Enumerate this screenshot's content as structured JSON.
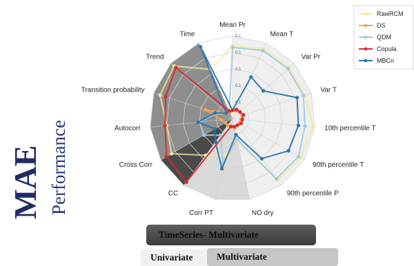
{
  "side": {
    "title": "MAE",
    "subtitle": "Performance"
  },
  "bars": {
    "timeseries": "TimeSeries- Multivariate",
    "univariate": "Univariate",
    "multivariate": "Multivariate"
  },
  "colors": {
    "RawRCM": "#f2e89a",
    "DS": "#f3a25a",
    "QDM": "#9ccbe4",
    "Copula": "#d92b2b",
    "MBCn": "#2b76ad"
  },
  "chart_data": {
    "type": "radar",
    "axes": [
      "Mean Pr",
      "Mean T",
      "Var Pr",
      "Var T",
      "10th percentile T",
      "90th percentile T",
      "90th percentile P",
      "NO dry",
      "Corr PT",
      "CC",
      "Cross Corr",
      "Autocorr",
      "Transition probability",
      "Trend",
      "Time"
    ],
    "ticks": [
      "0.1",
      "0.1",
      "0.1",
      "0.1",
      "0.1"
    ],
    "rmax": 1.0,
    "series": [
      {
        "name": "RawRCM",
        "values": [
          0.88,
          0.92,
          0.92,
          0.92,
          0.98,
          0.95,
          0.92,
          0.28,
          0.45,
          0.55,
          0.85,
          0.8,
          0.92,
          0.95,
          0.65
        ]
      },
      {
        "name": "DS",
        "values": [
          0.1,
          0.1,
          0.12,
          0.12,
          0.1,
          0.1,
          0.1,
          0.12,
          0.1,
          0.1,
          0.1,
          0.14,
          0.34,
          0.1,
          0.08
        ]
      },
      {
        "name": "QDM",
        "values": [
          0.86,
          0.9,
          0.9,
          0.9,
          0.88,
          0.92,
          0.9,
          0.26,
          0.55,
          0.25,
          0.4,
          0.4,
          0.2,
          0.1,
          0.1
        ]
      },
      {
        "name": "Copula",
        "values": [
          0.1,
          0.12,
          0.12,
          0.14,
          0.12,
          0.12,
          0.1,
          0.1,
          0.1,
          0.95,
          0.92,
          0.82,
          0.85,
          0.92,
          0.1
        ]
      },
      {
        "name": "MBCn",
        "values": [
          0.1,
          0.55,
          0.5,
          0.82,
          0.8,
          0.78,
          0.6,
          0.2,
          0.62,
          0.35,
          0.25,
          0.42,
          0.22,
          0.1,
          0.95
        ]
      }
    ],
    "legend_position": "top-right"
  }
}
